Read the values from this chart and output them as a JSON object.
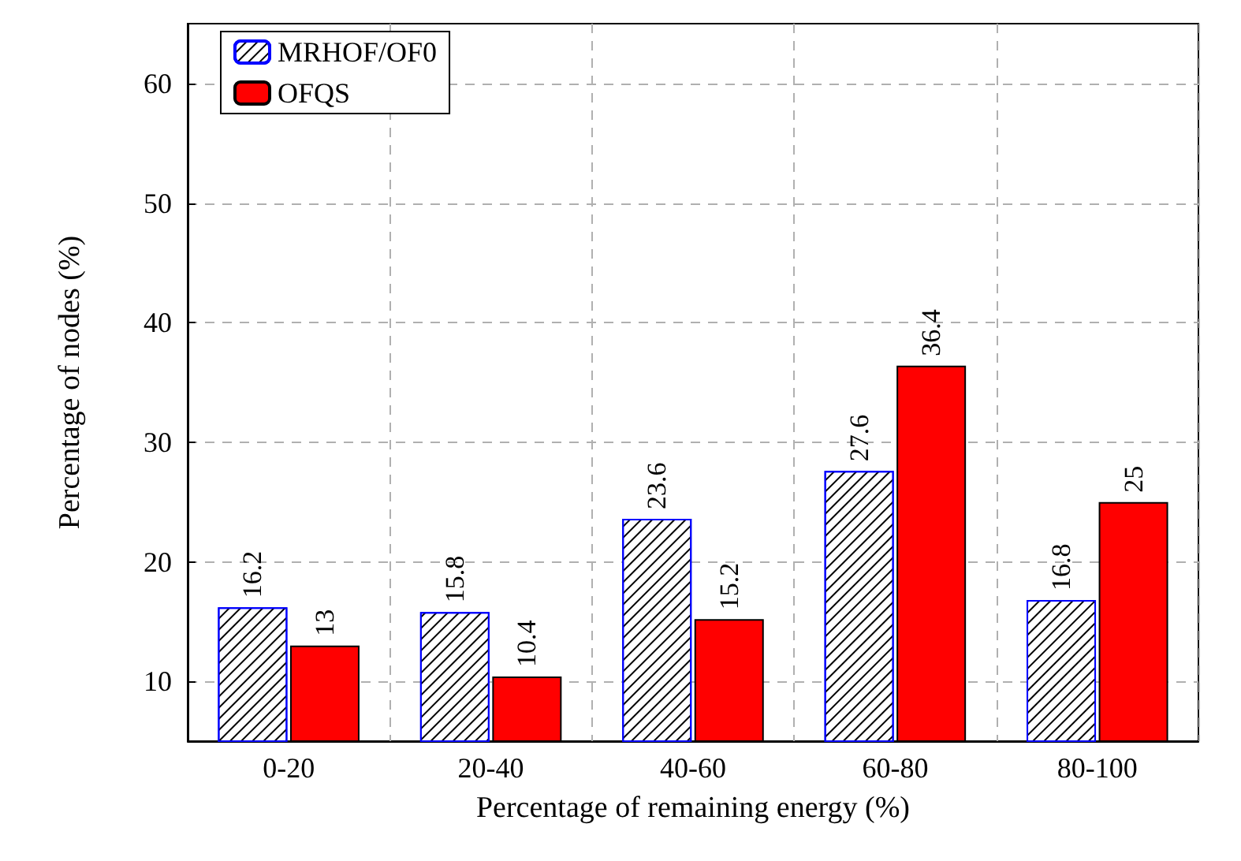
{
  "chart_data": {
    "type": "bar",
    "xlabel": "Percentage of remaining energy (%)",
    "ylabel": "Percentage of nodes (%)",
    "categories": [
      "0-20",
      "20-40",
      "40-60",
      "60-80",
      "80-100"
    ],
    "series": [
      {
        "name": "MRHOF/OF0",
        "color": "#0000ff",
        "values": [
          16.2,
          15.8,
          23.6,
          27.6,
          16.8
        ]
      },
      {
        "name": "OFQS",
        "color": "#ff0000",
        "values": [
          13,
          10.4,
          15.2,
          36.4,
          25
        ]
      }
    ],
    "ylim": [
      5,
      65
    ],
    "yticks": [
      10,
      20,
      30,
      40,
      50,
      60
    ],
    "grid": true,
    "legend": "top left",
    "data_labels": true
  }
}
